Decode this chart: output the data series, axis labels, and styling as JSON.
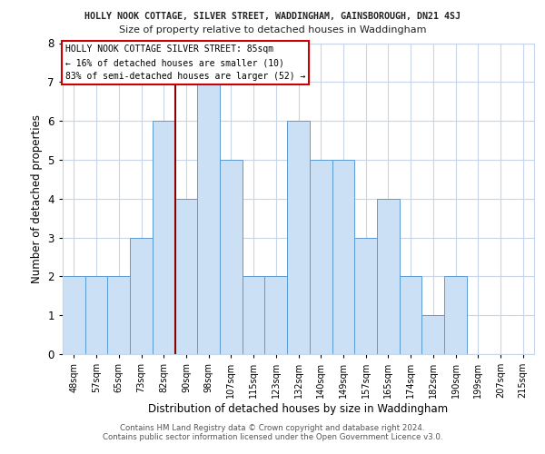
{
  "title_line1": "HOLLY NOOK COTTAGE, SILVER STREET, WADDINGHAM, GAINSBOROUGH, DN21 4SJ",
  "title_line2": "Size of property relative to detached houses in Waddingham",
  "xlabel": "Distribution of detached houses by size in Waddingham",
  "ylabel": "Number of detached properties",
  "footer1": "Contains HM Land Registry data © Crown copyright and database right 2024.",
  "footer2": "Contains public sector information licensed under the Open Government Licence v3.0.",
  "bin_labels": [
    "48sqm",
    "57sqm",
    "65sqm",
    "73sqm",
    "82sqm",
    "90sqm",
    "98sqm",
    "107sqm",
    "115sqm",
    "123sqm",
    "132sqm",
    "140sqm",
    "149sqm",
    "157sqm",
    "165sqm",
    "174sqm",
    "182sqm",
    "190sqm",
    "199sqm",
    "207sqm",
    "215sqm"
  ],
  "bar_heights": [
    2,
    2,
    2,
    3,
    6,
    4,
    7,
    5,
    2,
    2,
    6,
    5,
    5,
    3,
    4,
    2,
    1,
    2,
    0,
    0,
    0
  ],
  "property_bin_index": 4,
  "vline_label": "HOLLY NOOK COTTAGE SILVER STREET: 85sqm",
  "annotation_line2": "← 16% of detached houses are smaller (10)",
  "annotation_line3": "83% of semi-detached houses are larger (52) →",
  "bar_color": "#cce0f5",
  "bar_edge_color": "#5b9bd5",
  "vline_color": "#8b0000",
  "box_edge_color": "#cc0000",
  "bg_color": "#ffffff",
  "grid_color": "#c8d4e8",
  "ylim": [
    0,
    8
  ],
  "yticks": [
    0,
    1,
    2,
    3,
    4,
    5,
    6,
    7,
    8
  ]
}
